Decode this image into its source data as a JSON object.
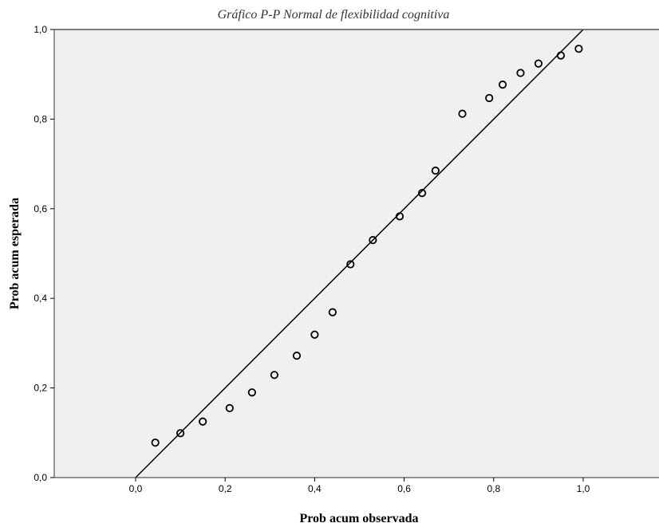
{
  "chart_data": {
    "type": "scatter",
    "title": "Gráfico P-P Normal de flexibilidad cognitiva",
    "xlabel": "Prob acum observada",
    "ylabel": "Prob acum esperada",
    "xlim": [
      -0.2,
      1.17
    ],
    "ylim": [
      0.0,
      1.0
    ],
    "x_ticks": [
      "0,0",
      "0,2",
      "0,4",
      "0,6",
      "0,8",
      "1,0"
    ],
    "x_tick_values": [
      0.0,
      0.2,
      0.4,
      0.6,
      0.8,
      1.0
    ],
    "y_ticks": [
      "0,0",
      "0,2",
      "0,4",
      "0,6",
      "0,8",
      "1,0"
    ],
    "y_tick_values": [
      0.0,
      0.2,
      0.4,
      0.6,
      0.8,
      1.0
    ],
    "reference_line": [
      [
        0.0,
        0.0
      ],
      [
        1.0,
        1.0
      ]
    ],
    "points": [
      {
        "x": 0.044,
        "y": 0.078
      },
      {
        "x": 0.1,
        "y": 0.099
      },
      {
        "x": 0.15,
        "y": 0.125
      },
      {
        "x": 0.21,
        "y": 0.155
      },
      {
        "x": 0.26,
        "y": 0.19
      },
      {
        "x": 0.31,
        "y": 0.229
      },
      {
        "x": 0.36,
        "y": 0.272
      },
      {
        "x": 0.4,
        "y": 0.319
      },
      {
        "x": 0.44,
        "y": 0.369
      },
      {
        "x": 0.48,
        "y": 0.476
      },
      {
        "x": 0.53,
        "y": 0.53
      },
      {
        "x": 0.59,
        "y": 0.583
      },
      {
        "x": 0.64,
        "y": 0.635
      },
      {
        "x": 0.67,
        "y": 0.685
      },
      {
        "x": 0.73,
        "y": 0.812
      },
      {
        "x": 0.79,
        "y": 0.847
      },
      {
        "x": 0.82,
        "y": 0.877
      },
      {
        "x": 0.86,
        "y": 0.903
      },
      {
        "x": 0.9,
        "y": 0.924
      },
      {
        "x": 0.95,
        "y": 0.942
      },
      {
        "x": 0.99,
        "y": 0.957
      }
    ],
    "grid": false,
    "colors": {
      "plot_background": "#f0f0f0",
      "marker": "#000000",
      "line": "#000000",
      "frame": "#555555"
    }
  }
}
